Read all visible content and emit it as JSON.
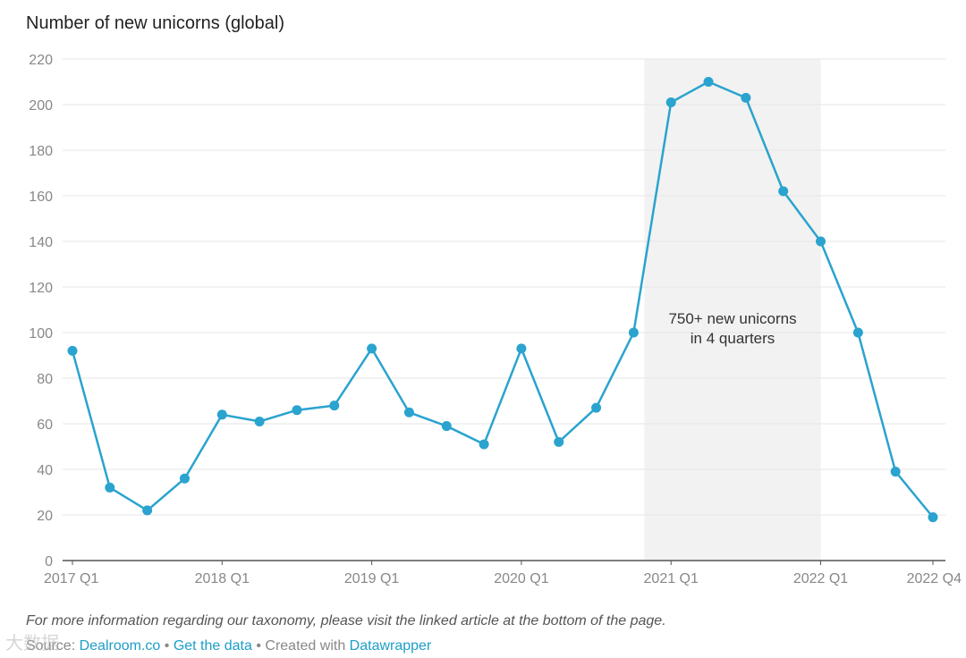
{
  "title": "Number of new unicorns (global)",
  "notes": "For more information regarding our taxonomy, please visit the linked article at the bottom of the page.",
  "source": {
    "prefix": "Source:",
    "source_link": "Dealroom.co",
    "sep1": "•",
    "get_data": "Get the data",
    "sep2": "•",
    "created_with": "Created with",
    "tool_link": "Datawrapper"
  },
  "watermark": "大数据",
  "colors": {
    "line": "#2aa3cf",
    "highlight": "#f2f2f2",
    "grid": "#e6e6e6",
    "axis": "#555555"
  },
  "chart_data": {
    "type": "line",
    "title": "Number of new unicorns (global)",
    "x": [
      "2017 Q1",
      "2017 Q2",
      "2017 Q3",
      "2017 Q4",
      "2018 Q1",
      "2018 Q2",
      "2018 Q3",
      "2018 Q4",
      "2019 Q1",
      "2019 Q2",
      "2019 Q3",
      "2019 Q4",
      "2020 Q1",
      "2020 Q2",
      "2020 Q3",
      "2020 Q4",
      "2021 Q1",
      "2021 Q2",
      "2021 Q3",
      "2021 Q4",
      "2022 Q1",
      "2022 Q2",
      "2022 Q3",
      "2022 Q4"
    ],
    "series": [
      {
        "values": [
          92,
          32,
          22,
          36,
          64,
          61,
          66,
          68,
          93,
          65,
          59,
          51,
          93,
          52,
          67,
          100,
          201,
          210,
          203,
          162,
          140,
          100,
          39,
          19
        ]
      }
    ],
    "x_tick_labels": [
      "2017 Q1",
      "2018 Q1",
      "2019 Q1",
      "2020 Q1",
      "2021 Q1",
      "2022 Q1",
      "2022 Q4"
    ],
    "y_ticks": [
      0,
      20,
      40,
      60,
      80,
      100,
      120,
      140,
      160,
      180,
      200,
      220
    ],
    "ylim": [
      0,
      220
    ],
    "grid": true,
    "highlight_range": [
      "2020 Q4",
      "2021 Q4"
    ],
    "annotation": {
      "lines": [
        "750+ new unicorns",
        "in 4 quarters"
      ]
    },
    "xlabel": "",
    "ylabel": ""
  }
}
